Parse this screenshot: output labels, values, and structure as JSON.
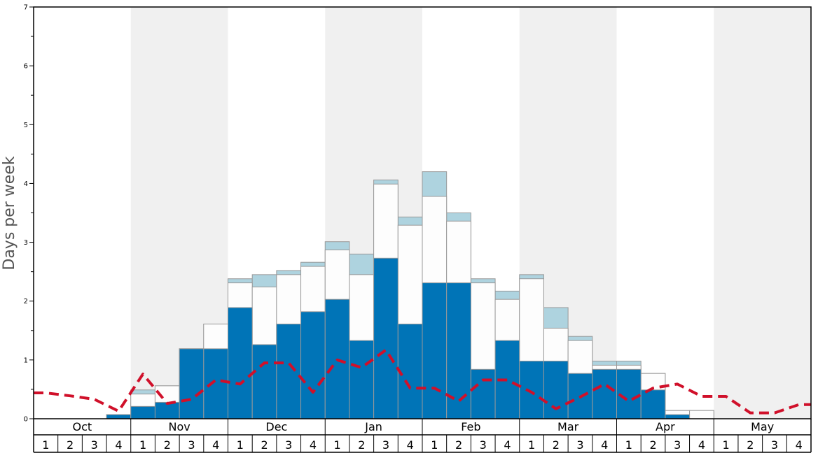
{
  "chart_data": {
    "type": "bar",
    "ylabel": "Days per week",
    "ylim": [
      0,
      7
    ],
    "y_ticks": [
      "0",
      "1",
      "2",
      "3",
      "4",
      "5",
      "6",
      "7"
    ],
    "months": [
      "Oct",
      "Nov",
      "Dec",
      "Jan",
      "Feb",
      "Mar",
      "Apr",
      "May"
    ],
    "week_labels": [
      "1",
      "2",
      "3",
      "4"
    ],
    "colors": {
      "base": "#0074b7",
      "middle": "#fdfdfd",
      "top": "#aed3df",
      "line": "#d0102a",
      "band": "#f0f0f0",
      "stroke": "#999999"
    },
    "series": [
      {
        "values": [
          0,
          0,
          0,
          0.07,
          0.21,
          0.28,
          1.19,
          1.19,
          1.89,
          1.26,
          1.61,
          1.82,
          2.03,
          1.33,
          2.73,
          1.61,
          2.31,
          2.31,
          0.84,
          1.33,
          0.98,
          0.98,
          0.77,
          0.84,
          0.84,
          0.49,
          0.07,
          0,
          0,
          0,
          0,
          0
        ]
      },
      {
        "values": [
          0,
          0,
          0,
          0.07,
          0.42,
          0.56,
          1.19,
          1.61,
          2.31,
          2.24,
          2.45,
          2.59,
          2.87,
          2.45,
          3.99,
          3.29,
          3.78,
          3.36,
          2.31,
          2.03,
          2.38,
          1.54,
          1.33,
          0.91,
          0.91,
          0.77,
          0.14,
          0.14,
          0,
          0,
          0,
          0
        ]
      },
      {
        "values": [
          0,
          0,
          0,
          0.07,
          0.49,
          0.56,
          1.19,
          1.61,
          2.38,
          2.45,
          2.52,
          2.66,
          3.01,
          2.8,
          4.06,
          3.43,
          4.2,
          3.5,
          2.38,
          2.17,
          2.45,
          1.89,
          1.4,
          0.98,
          0.98,
          0.77,
          0.14,
          0.14,
          0,
          0,
          0,
          0
        ]
      },
      {
        "values": [
          0.44,
          0.39,
          0.33,
          0.13,
          0.76,
          0.26,
          0.33,
          0.66,
          0.59,
          0.95,
          0.95,
          0.45,
          1.0,
          0.87,
          1.17,
          0.52,
          0.52,
          0.3,
          0.66,
          0.66,
          0.45,
          0.17,
          0.37,
          0.59,
          0.3,
          0.52,
          0.59,
          0.38,
          0.38,
          0.1,
          0.1,
          0.24
        ]
      }
    ]
  }
}
